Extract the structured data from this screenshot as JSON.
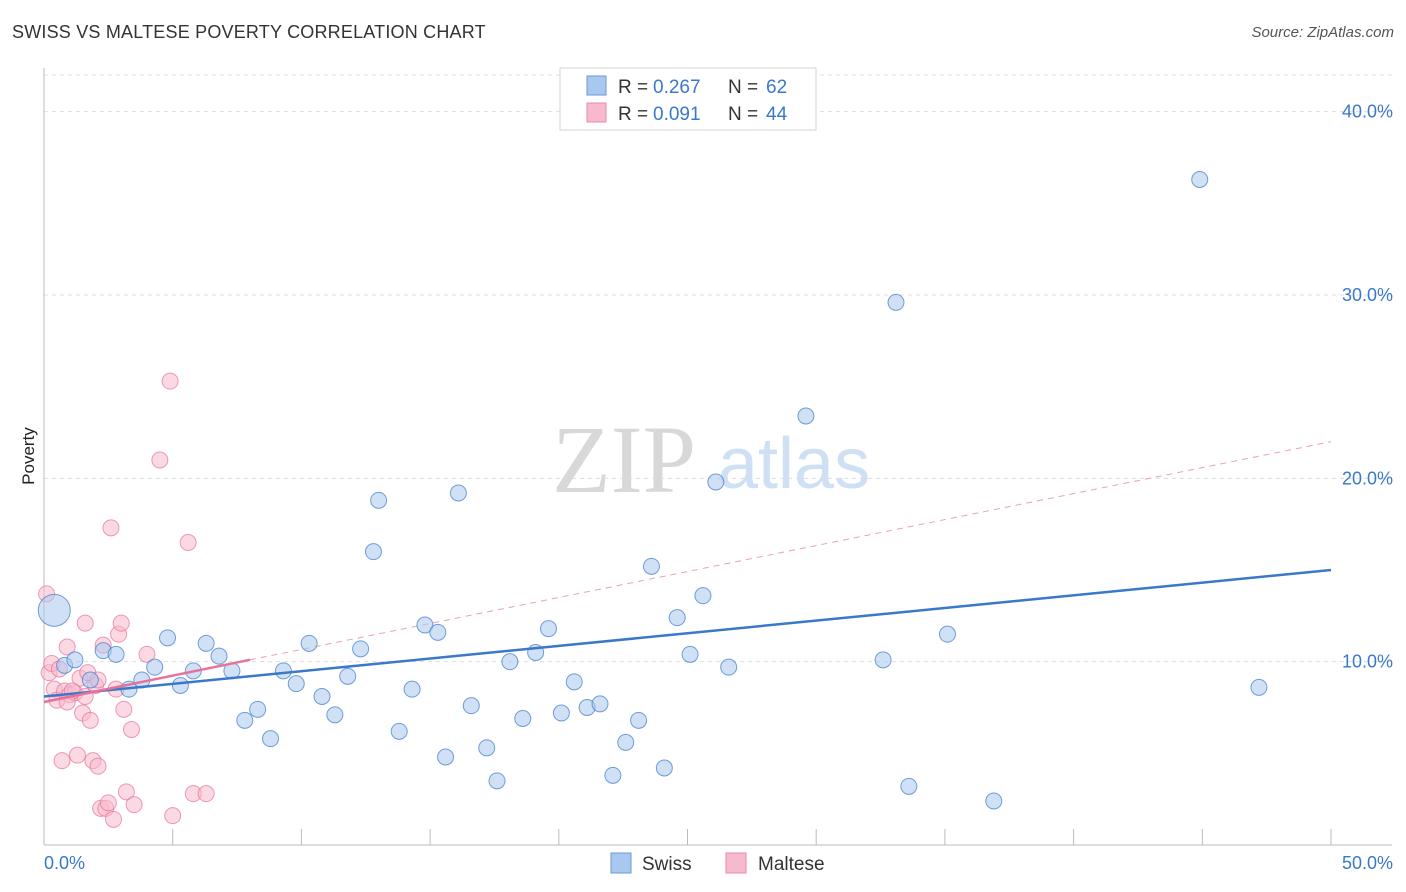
{
  "header": {
    "title": "SWISS VS MALTESE POVERTY CORRELATION CHART",
    "source": "Source: ZipAtlas.com"
  },
  "watermark": {
    "zip": "ZIP",
    "atlas": "atlas"
  },
  "legend": {
    "rows": [
      {
        "r_label": "R = ",
        "r_value": "0.267",
        "n_label": "N = ",
        "n_value": "62",
        "color": "#a9c8ef"
      },
      {
        "r_label": "R = ",
        "r_value": "0.091",
        "n_label": "N = ",
        "n_value": "44",
        "color": "#f7b9cc"
      }
    ]
  },
  "bottom_legend": [
    "Swiss",
    "Maltese"
  ],
  "chart_data": {
    "type": "scatter",
    "title": "SWISS VS MALTESE POVERTY CORRELATION CHART",
    "xlabel": "",
    "ylabel": "Poverty",
    "xlim": [
      0,
      50
    ],
    "ylim": [
      0,
      42
    ],
    "x_tick_labels": [
      "0.0%",
      "50.0%"
    ],
    "y_ticks": [
      10,
      20,
      30,
      40
    ],
    "y_tick_labels": [
      "10.0%",
      "20.0%",
      "30.0%",
      "40.0%"
    ],
    "grid": true,
    "legend_position": "top-center",
    "colors": {
      "swiss": "#3a78c9",
      "swiss_fill": "#a9c8ef",
      "maltese": "#e8719a",
      "maltese_fill": "#f7b9cc"
    },
    "series": [
      {
        "name": "Swiss",
        "r": 0.267,
        "n": 62,
        "trend": {
          "x": [
            0,
            50
          ],
          "y": [
            8.1,
            15.0
          ],
          "style": "solid"
        },
        "points": [
          [
            0.4,
            12.8,
            "large"
          ],
          [
            0.8,
            9.8
          ],
          [
            1.2,
            10.1
          ],
          [
            1.8,
            9.0
          ],
          [
            2.3,
            10.6
          ],
          [
            2.8,
            10.4
          ],
          [
            3.3,
            8.5
          ],
          [
            3.8,
            9.0
          ],
          [
            4.3,
            9.7
          ],
          [
            4.8,
            11.3
          ],
          [
            5.3,
            8.7
          ],
          [
            5.8,
            9.5
          ],
          [
            6.3,
            11.0
          ],
          [
            6.8,
            10.3
          ],
          [
            7.3,
            9.5
          ],
          [
            7.8,
            6.8
          ],
          [
            8.3,
            7.4
          ],
          [
            8.8,
            5.8
          ],
          [
            9.3,
            9.5
          ],
          [
            9.8,
            8.8
          ],
          [
            10.3,
            11.0
          ],
          [
            10.8,
            8.1
          ],
          [
            11.3,
            7.1
          ],
          [
            11.8,
            9.2
          ],
          [
            12.3,
            10.7
          ],
          [
            12.8,
            16.0
          ],
          [
            13.0,
            18.8
          ],
          [
            13.8,
            6.2
          ],
          [
            14.3,
            8.5
          ],
          [
            14.8,
            12.0
          ],
          [
            15.3,
            11.6
          ],
          [
            15.6,
            4.8
          ],
          [
            16.1,
            19.2
          ],
          [
            16.6,
            7.6
          ],
          [
            17.2,
            5.3
          ],
          [
            17.6,
            3.5
          ],
          [
            18.1,
            10.0
          ],
          [
            18.6,
            6.9
          ],
          [
            19.1,
            10.5
          ],
          [
            19.6,
            11.8
          ],
          [
            20.1,
            7.2
          ],
          [
            20.6,
            8.9
          ],
          [
            21.1,
            7.5
          ],
          [
            21.6,
            7.7
          ],
          [
            22.1,
            3.8
          ],
          [
            22.6,
            5.6
          ],
          [
            23.1,
            6.8
          ],
          [
            23.6,
            15.2
          ],
          [
            24.1,
            4.2
          ],
          [
            24.6,
            12.4
          ],
          [
            25.1,
            10.4
          ],
          [
            25.6,
            13.6
          ],
          [
            26.1,
            19.8
          ],
          [
            26.6,
            9.7
          ],
          [
            29.6,
            23.4
          ],
          [
            32.6,
            10.1
          ],
          [
            33.1,
            29.6
          ],
          [
            33.6,
            3.2
          ],
          [
            35.1,
            11.5
          ],
          [
            36.9,
            2.4
          ],
          [
            44.9,
            36.3
          ],
          [
            47.2,
            8.6
          ]
        ]
      },
      {
        "name": "Maltese",
        "r": 0.091,
        "n": 44,
        "trend": {
          "x": [
            0,
            8
          ],
          "y": [
            7.8,
            10.1
          ],
          "style": "solid",
          "extended": {
            "x": [
              8,
              50
            ],
            "y": [
              10.1,
              22.0
            ],
            "style": "dashed"
          }
        },
        "points": [
          [
            0.1,
            13.7
          ],
          [
            0.2,
            9.4
          ],
          [
            0.3,
            9.9
          ],
          [
            0.4,
            8.5
          ],
          [
            0.5,
            7.9
          ],
          [
            0.6,
            9.6
          ],
          [
            0.7,
            4.6
          ],
          [
            0.8,
            8.4
          ],
          [
            0.9,
            10.8
          ],
          [
            1.0,
            8.2
          ],
          [
            1.2,
            8.3
          ],
          [
            1.3,
            4.9
          ],
          [
            1.4,
            9.1
          ],
          [
            1.5,
            7.2
          ],
          [
            1.6,
            12.1
          ],
          [
            1.7,
            9.4
          ],
          [
            1.8,
            6.8
          ],
          [
            1.9,
            4.6
          ],
          [
            2.0,
            8.7
          ],
          [
            2.1,
            4.3
          ],
          [
            2.2,
            2.0
          ],
          [
            2.3,
            10.9
          ],
          [
            2.4,
            2.0
          ],
          [
            2.5,
            2.3
          ],
          [
            2.6,
            17.3
          ],
          [
            2.7,
            1.4
          ],
          [
            2.8,
            8.5
          ],
          [
            2.9,
            11.5
          ],
          [
            3.0,
            12.1
          ],
          [
            3.1,
            7.4
          ],
          [
            3.2,
            2.9
          ],
          [
            3.4,
            6.3
          ],
          [
            3.5,
            2.2
          ],
          [
            4.0,
            10.4
          ],
          [
            4.9,
            25.3
          ],
          [
            4.5,
            21.0
          ],
          [
            5.0,
            1.6
          ],
          [
            5.6,
            16.5
          ],
          [
            5.8,
            2.8
          ],
          [
            6.3,
            2.8
          ],
          [
            1.1,
            8.4
          ],
          [
            0.9,
            7.8
          ],
          [
            1.6,
            8.1
          ],
          [
            2.1,
            9.0
          ]
        ]
      }
    ]
  }
}
